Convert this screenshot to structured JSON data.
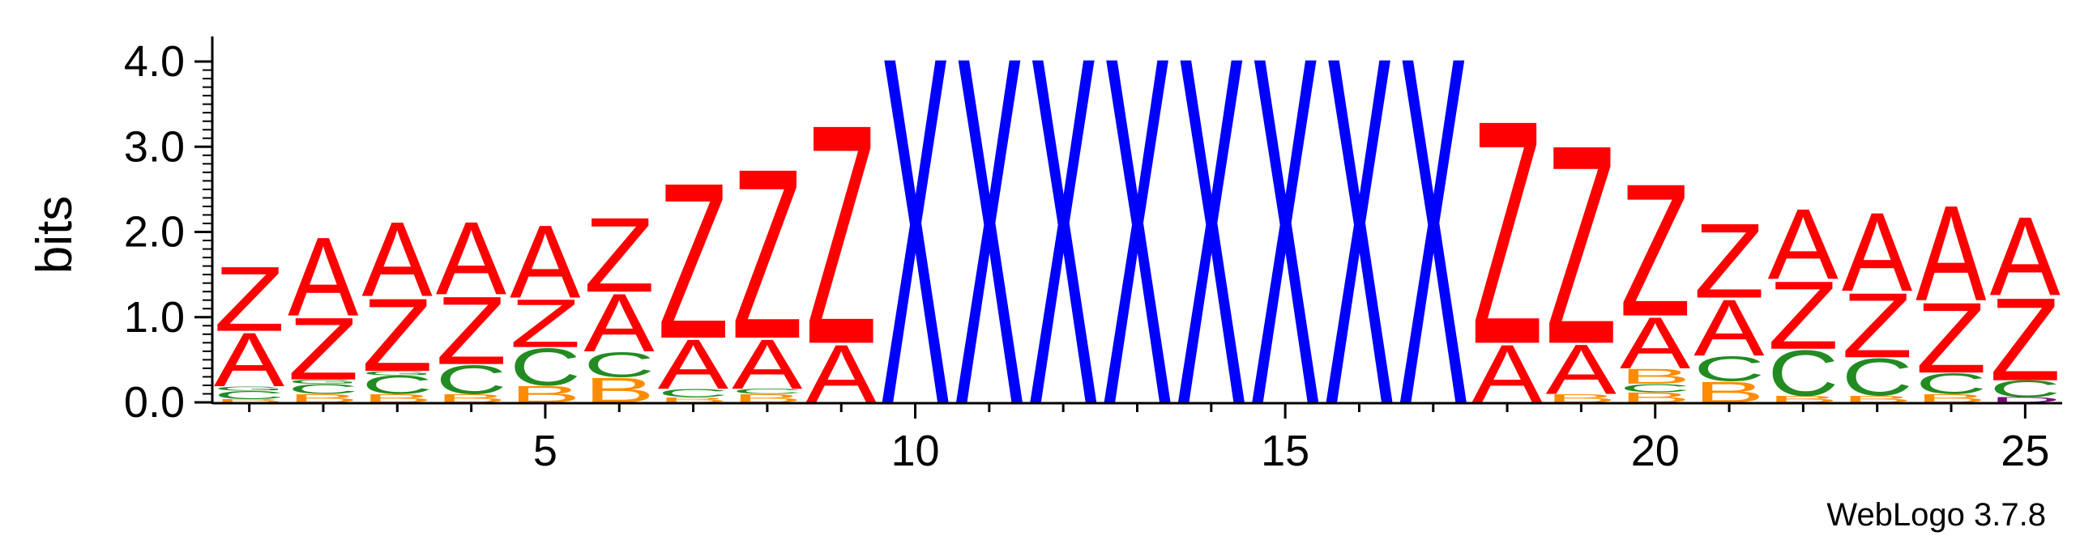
{
  "chart_data": {
    "type": "sequence-logo",
    "ylabel": "bits",
    "ylim": [
      0,
      4.2
    ],
    "yticks": [
      "0.0",
      "1.0",
      "2.0",
      "3.0",
      "4.0"
    ],
    "xticks": [
      5,
      10,
      15,
      20,
      25
    ],
    "positions": [
      {
        "pos": 1,
        "stack": [
          [
            "B",
            0.04
          ],
          [
            "C",
            0.1
          ],
          [
            "G",
            0.05
          ],
          [
            "A",
            0.65
          ],
          [
            "Z",
            0.78
          ]
        ]
      },
      {
        "pos": 2,
        "stack": [
          [
            "B",
            0.1
          ],
          [
            "C",
            0.12
          ],
          [
            "G",
            0.05
          ],
          [
            "Z",
            0.75
          ],
          [
            "A",
            0.95
          ]
        ]
      },
      {
        "pos": 3,
        "stack": [
          [
            "B",
            0.1
          ],
          [
            "C",
            0.22
          ],
          [
            "G",
            0.05
          ],
          [
            "Z",
            0.88
          ],
          [
            "A",
            0.9
          ]
        ]
      },
      {
        "pos": 4,
        "stack": [
          [
            "B",
            0.1
          ],
          [
            "C",
            0.35
          ],
          [
            "Z",
            0.82
          ],
          [
            "A",
            0.88
          ]
        ]
      },
      {
        "pos": 5,
        "stack": [
          [
            "B",
            0.2
          ],
          [
            "C",
            0.45
          ],
          [
            "Z",
            0.58
          ],
          [
            "A",
            0.88
          ]
        ]
      },
      {
        "pos": 6,
        "stack": [
          [
            "B",
            0.3
          ],
          [
            "C",
            0.3
          ],
          [
            "A",
            0.7
          ],
          [
            "Z",
            0.9
          ]
        ]
      },
      {
        "pos": 7,
        "stack": [
          [
            "B",
            0.06
          ],
          [
            "C",
            0.1
          ],
          [
            "A",
            0.6
          ],
          [
            "Z",
            1.88
          ]
        ]
      },
      {
        "pos": 8,
        "stack": [
          [
            "B",
            0.1
          ],
          [
            "C",
            0.06
          ],
          [
            "A",
            0.6
          ],
          [
            "Z",
            2.05
          ]
        ]
      },
      {
        "pos": 9,
        "stack": [
          [
            "A",
            0.7
          ],
          [
            "Z",
            2.65
          ]
        ]
      },
      {
        "pos": 10,
        "stack": [
          [
            "X",
            4.2
          ]
        ]
      },
      {
        "pos": 11,
        "stack": [
          [
            "X",
            4.2
          ]
        ]
      },
      {
        "pos": 12,
        "stack": [
          [
            "X",
            4.2
          ]
        ]
      },
      {
        "pos": 13,
        "stack": [
          [
            "X",
            4.2
          ]
        ]
      },
      {
        "pos": 14,
        "stack": [
          [
            "X",
            4.2
          ]
        ]
      },
      {
        "pos": 15,
        "stack": [
          [
            "X",
            4.2
          ]
        ]
      },
      {
        "pos": 16,
        "stack": [
          [
            "X",
            4.2
          ]
        ]
      },
      {
        "pos": 17,
        "stack": [
          [
            "X",
            4.2
          ]
        ]
      },
      {
        "pos": 18,
        "stack": [
          [
            "A",
            0.7
          ],
          [
            "Z",
            2.7
          ]
        ]
      },
      {
        "pos": 19,
        "stack": [
          [
            "B",
            0.1
          ],
          [
            "A",
            0.6
          ],
          [
            "Z",
            2.4
          ]
        ]
      },
      {
        "pos": 20,
        "stack": [
          [
            "B",
            0.12
          ],
          [
            "C",
            0.1
          ],
          [
            "B",
            0.18
          ],
          [
            "A",
            0.62
          ],
          [
            "Z",
            1.6
          ]
        ]
      },
      {
        "pos": 21,
        "stack": [
          [
            "B",
            0.25
          ],
          [
            "C",
            0.3
          ],
          [
            "A",
            0.68
          ],
          [
            "Z",
            0.9
          ]
        ]
      },
      {
        "pos": 22,
        "stack": [
          [
            "B",
            0.08
          ],
          [
            "C",
            0.55
          ],
          [
            "Z",
            0.82
          ],
          [
            "A",
            0.85
          ]
        ]
      },
      {
        "pos": 23,
        "stack": [
          [
            "B",
            0.08
          ],
          [
            "C",
            0.45
          ],
          [
            "Z",
            0.78
          ],
          [
            "A",
            0.95
          ]
        ]
      },
      {
        "pos": 24,
        "stack": [
          [
            "B",
            0.1
          ],
          [
            "C",
            0.25
          ],
          [
            "Z",
            0.85
          ],
          [
            "A",
            1.15
          ]
        ]
      },
      {
        "pos": 25,
        "stack": [
          [
            "D",
            0.06
          ],
          [
            "C",
            0.2
          ],
          [
            "Z",
            1.0
          ],
          [
            "A",
            0.95
          ]
        ]
      }
    ]
  },
  "colors": {
    "A": "#ff0000",
    "Z": "#ff0000",
    "X": "#0000ff",
    "C": "#228b22",
    "G": "#228b22",
    "B": "#ff8c00",
    "D": "#800080"
  },
  "credit": "WebLogo 3.7.8"
}
